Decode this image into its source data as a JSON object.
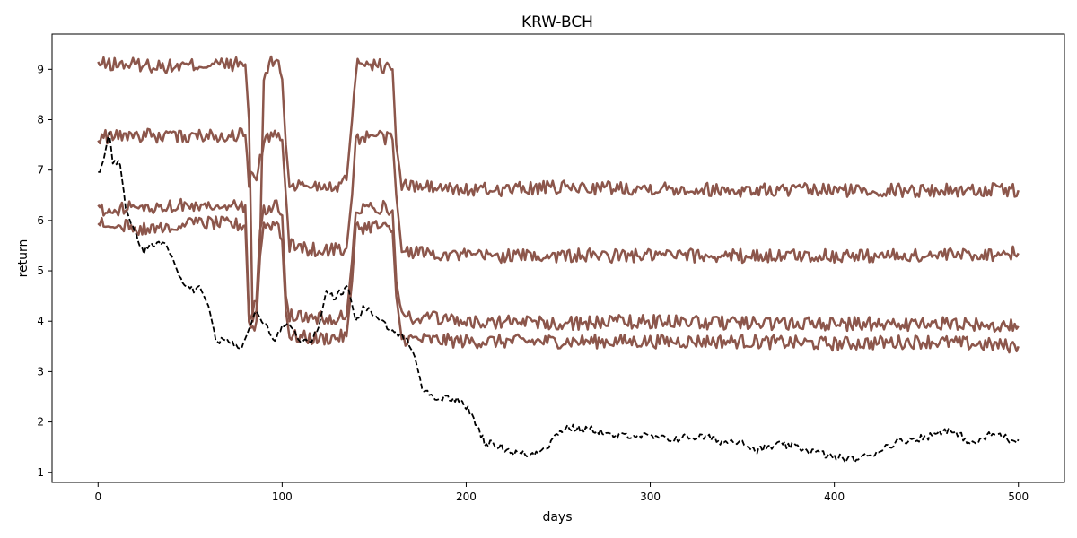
{
  "chart_data": {
    "type": "line",
    "title": "KRW-BCH",
    "xlabel": "days",
    "ylabel": "return",
    "xlim": [
      -25,
      525
    ],
    "ylim": [
      0.8,
      9.7
    ],
    "xticks": [
      0,
      100,
      200,
      300,
      400,
      500
    ],
    "yticks": [
      1,
      2,
      3,
      4,
      5,
      6,
      7,
      8,
      9
    ],
    "grid": false,
    "legend": "none",
    "colors": {
      "strategy": "#8c564b",
      "baseline": "#000000"
    },
    "series": [
      {
        "style": "solid",
        "color": "#8c564b",
        "points": [
          [
            0,
            9.1
          ],
          [
            20,
            9.1
          ],
          [
            40,
            9.05
          ],
          [
            60,
            9.1
          ],
          [
            80,
            9.1
          ],
          [
            82,
            8.0
          ],
          [
            84,
            4.0
          ],
          [
            86,
            4.2
          ],
          [
            88,
            5.5
          ],
          [
            90,
            8.8
          ],
          [
            93,
            9.1
          ],
          [
            98,
            9.2
          ],
          [
            100,
            8.8
          ],
          [
            102,
            7.5
          ],
          [
            104,
            6.7
          ],
          [
            120,
            6.7
          ],
          [
            130,
            6.7
          ],
          [
            135,
            6.8
          ],
          [
            138,
            8.0
          ],
          [
            140,
            9.0
          ],
          [
            142,
            9.2
          ],
          [
            150,
            9.1
          ],
          [
            160,
            9.0
          ],
          [
            162,
            7.5
          ],
          [
            165,
            6.7
          ],
          [
            200,
            6.6
          ],
          [
            250,
            6.65
          ],
          [
            300,
            6.65
          ],
          [
            350,
            6.6
          ],
          [
            400,
            6.6
          ],
          [
            450,
            6.6
          ],
          [
            500,
            6.6
          ]
        ]
      },
      {
        "style": "solid",
        "color": "#8c564b",
        "points": [
          [
            0,
            7.65
          ],
          [
            20,
            7.7
          ],
          [
            40,
            7.65
          ],
          [
            60,
            7.7
          ],
          [
            80,
            7.7
          ],
          [
            82,
            6.8
          ],
          [
            84,
            7.0
          ],
          [
            86,
            6.8
          ],
          [
            88,
            7.2
          ],
          [
            90,
            7.6
          ],
          [
            98,
            7.7
          ],
          [
            100,
            7.6
          ],
          [
            102,
            6.5
          ],
          [
            104,
            5.5
          ],
          [
            120,
            5.4
          ],
          [
            135,
            5.45
          ],
          [
            138,
            6.5
          ],
          [
            140,
            7.6
          ],
          [
            150,
            7.7
          ],
          [
            160,
            7.6
          ],
          [
            162,
            6.5
          ],
          [
            165,
            5.4
          ],
          [
            200,
            5.3
          ],
          [
            250,
            5.3
          ],
          [
            300,
            5.3
          ],
          [
            350,
            5.3
          ],
          [
            400,
            5.3
          ],
          [
            450,
            5.3
          ],
          [
            500,
            5.35
          ]
        ]
      },
      {
        "style": "solid",
        "color": "#8c564b",
        "points": [
          [
            0,
            6.2
          ],
          [
            20,
            6.25
          ],
          [
            40,
            6.3
          ],
          [
            60,
            6.3
          ],
          [
            80,
            6.3
          ],
          [
            82,
            4.0
          ],
          [
            84,
            4.2
          ],
          [
            86,
            4.4
          ],
          [
            88,
            5.8
          ],
          [
            90,
            6.2
          ],
          [
            98,
            6.3
          ],
          [
            100,
            6.1
          ],
          [
            102,
            4.5
          ],
          [
            104,
            4.1
          ],
          [
            120,
            4.05
          ],
          [
            135,
            4.1
          ],
          [
            138,
            5.2
          ],
          [
            140,
            6.2
          ],
          [
            150,
            6.3
          ],
          [
            160,
            6.2
          ],
          [
            162,
            4.8
          ],
          [
            165,
            4.1
          ],
          [
            200,
            4.0
          ],
          [
            250,
            3.95
          ],
          [
            300,
            4.0
          ],
          [
            350,
            3.95
          ],
          [
            400,
            3.95
          ],
          [
            450,
            3.95
          ],
          [
            500,
            3.9
          ]
        ]
      },
      {
        "style": "solid",
        "color": "#8c564b",
        "points": [
          [
            0,
            5.95
          ],
          [
            20,
            5.85
          ],
          [
            40,
            5.9
          ],
          [
            60,
            5.95
          ],
          [
            80,
            5.9
          ],
          [
            82,
            4.0
          ],
          [
            84,
            3.85
          ],
          [
            86,
            4.0
          ],
          [
            88,
            5.3
          ],
          [
            90,
            5.9
          ],
          [
            98,
            5.95
          ],
          [
            100,
            5.6
          ],
          [
            102,
            4.2
          ],
          [
            104,
            3.7
          ],
          [
            120,
            3.65
          ],
          [
            135,
            3.7
          ],
          [
            138,
            4.8
          ],
          [
            140,
            5.85
          ],
          [
            150,
            5.9
          ],
          [
            160,
            5.8
          ],
          [
            162,
            4.5
          ],
          [
            165,
            3.65
          ],
          [
            200,
            3.6
          ],
          [
            250,
            3.6
          ],
          [
            300,
            3.6
          ],
          [
            350,
            3.6
          ],
          [
            400,
            3.55
          ],
          [
            450,
            3.6
          ],
          [
            500,
            3.5
          ]
        ]
      },
      {
        "style": "dashed",
        "color": "#000000",
        "points": [
          [
            0,
            6.9
          ],
          [
            3,
            7.2
          ],
          [
            6,
            7.75
          ],
          [
            8,
            7.2
          ],
          [
            12,
            7.1
          ],
          [
            15,
            6.3
          ],
          [
            18,
            5.9
          ],
          [
            22,
            5.6
          ],
          [
            25,
            5.4
          ],
          [
            30,
            5.5
          ],
          [
            35,
            5.6
          ],
          [
            40,
            5.3
          ],
          [
            45,
            4.8
          ],
          [
            50,
            4.6
          ],
          [
            55,
            4.7
          ],
          [
            60,
            4.3
          ],
          [
            64,
            3.65
          ],
          [
            70,
            3.6
          ],
          [
            75,
            3.55
          ],
          [
            78,
            3.5
          ],
          [
            82,
            3.9
          ],
          [
            86,
            4.2
          ],
          [
            88,
            4.0
          ],
          [
            92,
            3.9
          ],
          [
            95,
            3.6
          ],
          [
            100,
            3.9
          ],
          [
            104,
            4.0
          ],
          [
            110,
            3.6
          ],
          [
            115,
            3.6
          ],
          [
            120,
            3.9
          ],
          [
            124,
            4.6
          ],
          [
            128,
            4.45
          ],
          [
            132,
            4.6
          ],
          [
            136,
            4.65
          ],
          [
            140,
            4.0
          ],
          [
            144,
            4.25
          ],
          [
            148,
            4.2
          ],
          [
            152,
            4.0
          ],
          [
            158,
            3.9
          ],
          [
            162,
            3.8
          ],
          [
            168,
            3.6
          ],
          [
            172,
            3.3
          ],
          [
            176,
            2.7
          ],
          [
            180,
            2.55
          ],
          [
            186,
            2.45
          ],
          [
            190,
            2.5
          ],
          [
            195,
            2.45
          ],
          [
            200,
            2.3
          ],
          [
            205,
            2.0
          ],
          [
            210,
            1.6
          ],
          [
            215,
            1.55
          ],
          [
            220,
            1.5
          ],
          [
            225,
            1.4
          ],
          [
            235,
            1.35
          ],
          [
            240,
            1.45
          ],
          [
            245,
            1.55
          ],
          [
            250,
            1.8
          ],
          [
            255,
            1.9
          ],
          [
            262,
            1.85
          ],
          [
            270,
            1.85
          ],
          [
            280,
            1.7
          ],
          [
            290,
            1.75
          ],
          [
            300,
            1.7
          ],
          [
            310,
            1.65
          ],
          [
            320,
            1.7
          ],
          [
            330,
            1.7
          ],
          [
            340,
            1.6
          ],
          [
            350,
            1.65
          ],
          [
            355,
            1.45
          ],
          [
            360,
            1.45
          ],
          [
            370,
            1.55
          ],
          [
            380,
            1.5
          ],
          [
            390,
            1.4
          ],
          [
            400,
            1.3
          ],
          [
            410,
            1.25
          ],
          [
            420,
            1.35
          ],
          [
            430,
            1.55
          ],
          [
            440,
            1.65
          ],
          [
            450,
            1.7
          ],
          [
            460,
            1.85
          ],
          [
            470,
            1.7
          ],
          [
            475,
            1.55
          ],
          [
            485,
            1.75
          ],
          [
            490,
            1.75
          ],
          [
            495,
            1.65
          ],
          [
            500,
            1.65
          ]
        ]
      }
    ]
  }
}
